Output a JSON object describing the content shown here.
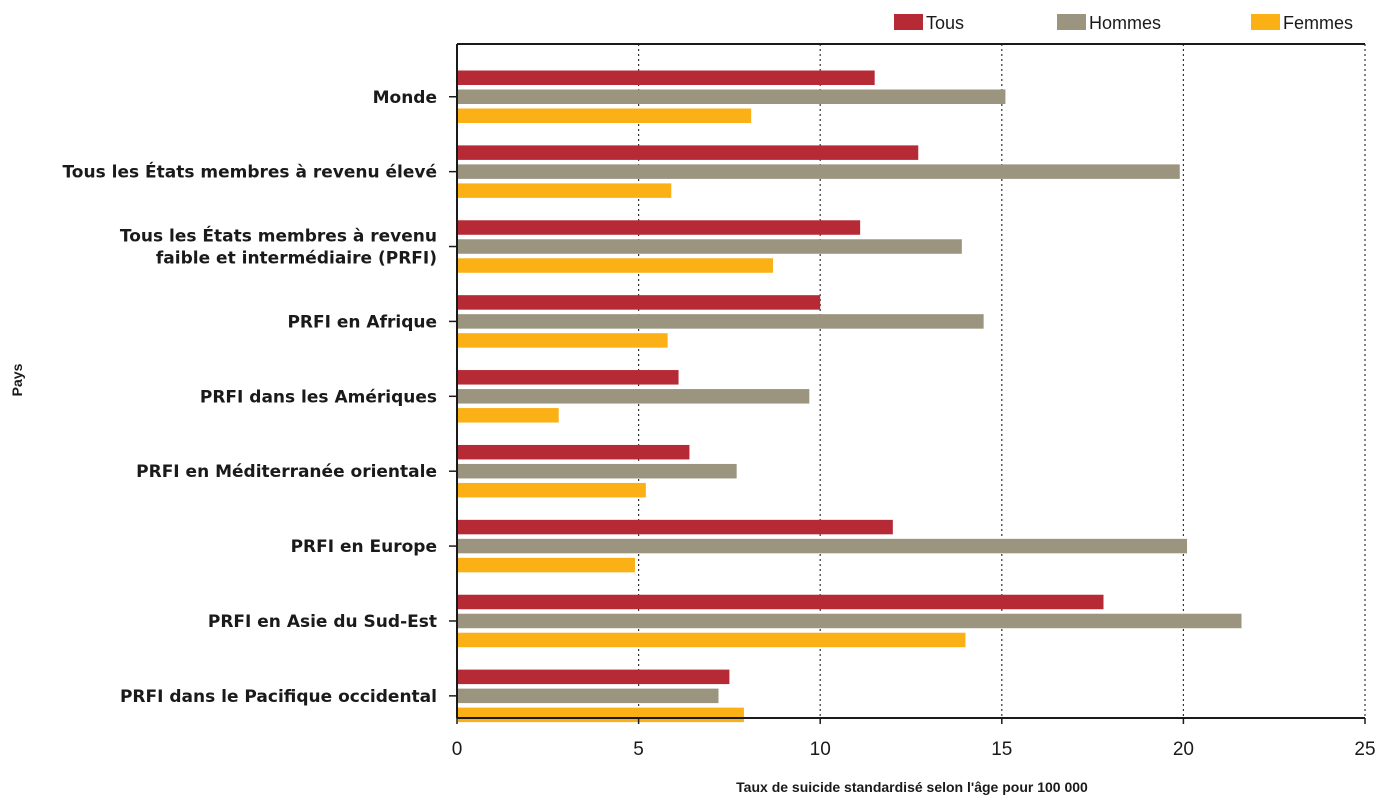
{
  "chart_data": {
    "type": "bar",
    "orientation": "horizontal",
    "categories": [
      [
        "Monde"
      ],
      [
        "Tous les États membres à revenu élevé"
      ],
      [
        "Tous les États membres à revenu",
        "faible et intermédiaire (PRFI)"
      ],
      [
        "PRFI en Afrique"
      ],
      [
        "PRFI dans les Amériques"
      ],
      [
        "PRFI en Méditerranée orientale"
      ],
      [
        "PRFI en Europe"
      ],
      [
        "PRFI en Asie du Sud-Est"
      ],
      [
        "PRFI dans le Pacifique occidental"
      ]
    ],
    "series": [
      {
        "name": "Tous",
        "color": "#b52a35",
        "values": [
          11.5,
          12.7,
          11.1,
          10.0,
          6.1,
          6.4,
          12.0,
          17.8,
          7.5
        ]
      },
      {
        "name": "Hommes",
        "color": "#9b9580",
        "values": [
          15.1,
          19.9,
          13.9,
          14.5,
          9.7,
          7.7,
          20.1,
          21.6,
          7.2
        ]
      },
      {
        "name": "Femmes",
        "color": "#fbb116",
        "values": [
          8.1,
          5.9,
          8.7,
          5.8,
          2.8,
          5.2,
          4.9,
          14.0,
          7.9
        ]
      }
    ],
    "xlabel": "Taux de suicide standardisé selon l'âge pour 100 000",
    "ylabel": "Pays",
    "xlim": [
      0,
      25
    ],
    "xticks": [
      0,
      5,
      10,
      15,
      20,
      25
    ],
    "grid": "vertical dotted",
    "legend": "top-right"
  }
}
